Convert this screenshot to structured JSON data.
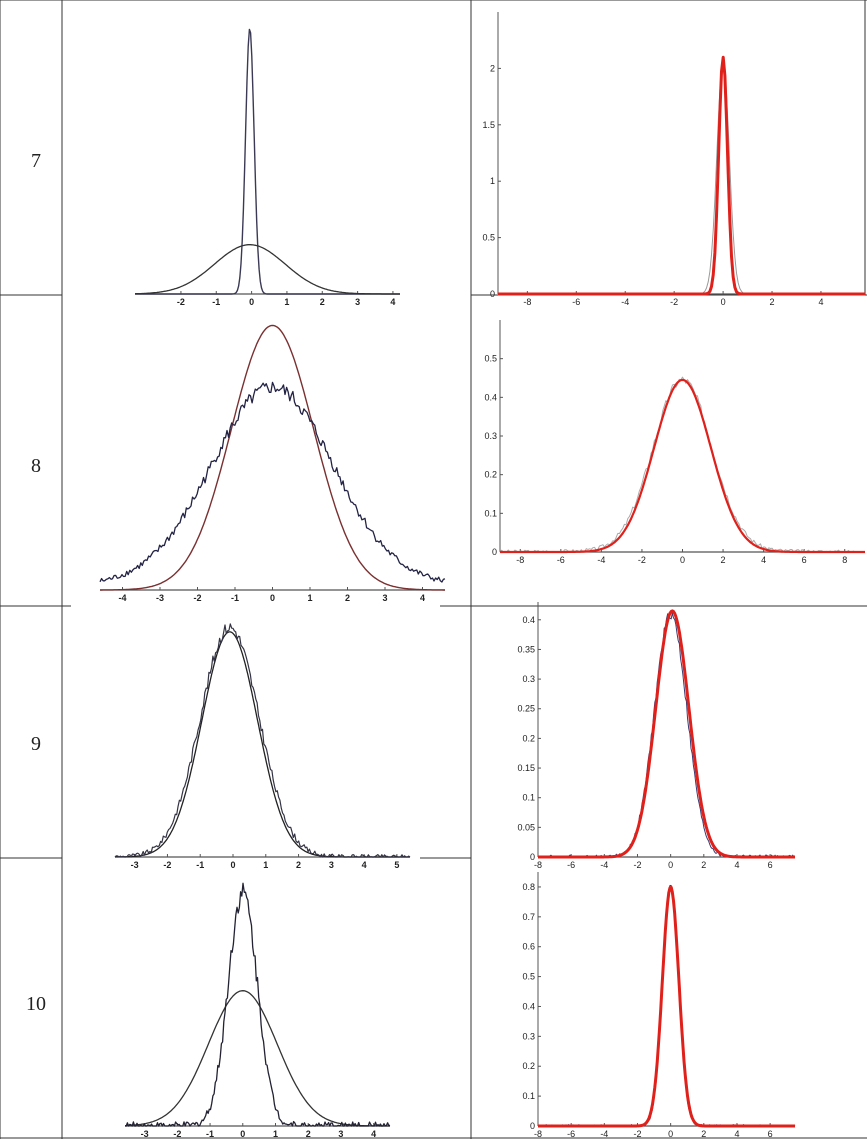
{
  "rows": [
    {
      "label": "7"
    },
    {
      "label": "8"
    },
    {
      "label": "9"
    },
    {
      "label": "10"
    }
  ],
  "chart_data": [
    {
      "type": "line",
      "panel": "row7-left",
      "xlim": [
        -3.3,
        4.2
      ],
      "ylim": [
        0,
        1.0
      ],
      "xticks": [
        "-2",
        "-1",
        "0",
        "1",
        "2",
        "3",
        "4"
      ],
      "xtick_values": [
        -2,
        -1,
        0,
        1,
        2,
        3,
        4
      ],
      "yticks": [],
      "ytick_values": [],
      "series": [
        {
          "kind": "gauss",
          "mu": -0.05,
          "sigma": 0.12,
          "amp": 0.97,
          "color": "#3a3a55",
          "width": 1.4
        },
        {
          "kind": "gauss",
          "mu": -0.05,
          "sigma": 1.0,
          "amp": 0.18,
          "color": "#333333",
          "width": 1.3
        }
      ]
    },
    {
      "type": "line",
      "panel": "row7-right",
      "xlim": [
        -9.2,
        5.8
      ],
      "ylim": [
        0,
        2.5
      ],
      "xticks": [
        "-8",
        "-6",
        "-4",
        "-2",
        "0",
        "2",
        "4"
      ],
      "xtick_values": [
        -8,
        -6,
        -4,
        -2,
        0,
        2,
        4
      ],
      "yticks": [
        "0",
        "0.5",
        "1",
        "1.5",
        "2"
      ],
      "ytick_values": [
        0,
        0.5,
        1,
        1.5,
        2
      ],
      "series": [
        {
          "kind": "gauss",
          "mu": 0.0,
          "sigma": 0.25,
          "amp": 2.08,
          "color": "#999999",
          "width": 1.0
        },
        {
          "kind": "gauss",
          "mu": 0.0,
          "sigma": 0.18,
          "amp": 2.1,
          "color": "#e0201a",
          "width": 3.0
        }
      ]
    },
    {
      "type": "line",
      "panel": "row8-left",
      "xlim": [
        -4.6,
        4.6
      ],
      "ylim": [
        0,
        1.0
      ],
      "xticks": [
        "-4",
        "-3",
        "-2",
        "-1",
        "0",
        "1",
        "2",
        "3",
        "4"
      ],
      "xtick_values": [
        -4,
        -3,
        -2,
        -1,
        0,
        1,
        2,
        3,
        4
      ],
      "yticks": [],
      "ytick_values": [],
      "series": [
        {
          "kind": "gauss",
          "mu": 0.0,
          "sigma": 1.1,
          "amp": 0.98,
          "color": "#7a3030",
          "width": 1.4
        },
        {
          "kind": "noisy",
          "mu": 0.0,
          "sigma": 1.6,
          "amp": 0.7,
          "base": 0.05,
          "noise": 0.025,
          "seed": 8,
          "color": "#222244",
          "width": 1.3
        }
      ]
    },
    {
      "type": "line",
      "panel": "row8-right",
      "xlim": [
        -9,
        9
      ],
      "ylim": [
        0,
        0.6
      ],
      "xticks": [
        "-8",
        "-6",
        "-4",
        "-2",
        "0",
        "2",
        "4",
        "6",
        "8"
      ],
      "xtick_values": [
        -8,
        -6,
        -4,
        -2,
        0,
        2,
        4,
        6,
        8
      ],
      "yticks": [
        "0",
        "0.1",
        "0.2",
        "0.3",
        "0.4",
        "0.5"
      ],
      "ytick_values": [
        0,
        0.1,
        0.2,
        0.3,
        0.4,
        0.5
      ],
      "series": [
        {
          "kind": "noisy",
          "mu": 0.0,
          "sigma": 1.45,
          "amp": 0.44,
          "base": 0.006,
          "noise": 0.012,
          "seed": 3,
          "color": "#aaaaaa",
          "width": 1.0
        },
        {
          "kind": "gauss",
          "mu": 0.0,
          "sigma": 1.4,
          "amp": 0.445,
          "color": "#e0201a",
          "width": 2.2
        }
      ]
    },
    {
      "type": "line",
      "panel": "row9-left",
      "xlim": [
        -3.6,
        5.4
      ],
      "ylim": [
        0,
        1.0
      ],
      "xticks": [
        "-3",
        "-2",
        "-1",
        "0",
        "1",
        "2",
        "3",
        "4",
        "5"
      ],
      "xtick_values": [
        -3,
        -2,
        -1,
        0,
        1,
        2,
        3,
        4,
        5
      ],
      "yticks": [],
      "ytick_values": [],
      "series": [
        {
          "kind": "gauss",
          "mu": -0.1,
          "sigma": 0.85,
          "amp": 0.95,
          "color": "#222222",
          "width": 1.3
        },
        {
          "kind": "noisy",
          "mu": -0.1,
          "sigma": 0.9,
          "amp": 0.97,
          "base": 0.0,
          "noise": 0.025,
          "seed": 9,
          "color": "#333344",
          "width": 1.2
        }
      ]
    },
    {
      "type": "line",
      "panel": "row9-right",
      "xlim": [
        -8,
        7.5
      ],
      "ylim": [
        0,
        0.43
      ],
      "xticks": [
        "-8",
        "-6",
        "-4",
        "-2",
        "0",
        "2",
        "4",
        "6"
      ],
      "xtick_values": [
        -8,
        -6,
        -4,
        -2,
        0,
        2,
        4,
        6
      ],
      "yticks": [
        "0",
        "0.05",
        "0.1",
        "0.15",
        "0.2",
        "0.25",
        "0.3",
        "0.35",
        "0.4"
      ],
      "ytick_values": [
        0,
        0.05,
        0.1,
        0.15,
        0.2,
        0.25,
        0.3,
        0.35,
        0.4
      ],
      "series": [
        {
          "kind": "noisy",
          "mu": 0.0,
          "sigma": 0.98,
          "amp": 0.41,
          "base": 0.0,
          "noise": 0.008,
          "seed": 4,
          "color": "#3a3a70",
          "width": 1.0
        },
        {
          "kind": "gauss",
          "mu": 0.1,
          "sigma": 1.0,
          "amp": 0.415,
          "color": "#e0201a",
          "width": 3.0
        }
      ]
    },
    {
      "type": "line",
      "panel": "row10-left",
      "xlim": [
        -3.6,
        4.5
      ],
      "ylim": [
        0,
        1.0
      ],
      "xticks": [
        "-3",
        "-2",
        "-1",
        "0",
        "1",
        "2",
        "3",
        "4"
      ],
      "xtick_values": [
        -3,
        -2,
        -1,
        0,
        1,
        2,
        3,
        4
      ],
      "yticks": [],
      "ytick_values": [],
      "series": [
        {
          "kind": "gauss",
          "mu": 0.0,
          "sigma": 1.05,
          "amp": 0.55,
          "color": "#333333",
          "width": 1.3
        },
        {
          "kind": "noisy",
          "mu": 0.0,
          "sigma": 0.45,
          "amp": 0.95,
          "base": 0.0,
          "noise": 0.04,
          "seed": 10,
          "color": "#222233",
          "width": 1.3
        }
      ]
    },
    {
      "type": "line",
      "panel": "row10-right",
      "xlim": [
        -8,
        7.5
      ],
      "ylim": [
        0,
        0.85
      ],
      "xticks": [
        "-8",
        "-6",
        "-4",
        "-2",
        "0",
        "2",
        "4",
        "6"
      ],
      "xtick_values": [
        -8,
        -6,
        -4,
        -2,
        0,
        2,
        4,
        6
      ],
      "yticks": [
        "0",
        "0.1",
        "0.2",
        "0.3",
        "0.4",
        "0.5",
        "0.6",
        "0.7",
        "0.8"
      ],
      "ytick_values": [
        0,
        0.1,
        0.2,
        0.3,
        0.4,
        0.5,
        0.6,
        0.7,
        0.8
      ],
      "series": [
        {
          "kind": "noisy",
          "mu": 0.0,
          "sigma": 0.48,
          "amp": 0.81,
          "base": 0.0,
          "noise": 0.012,
          "seed": 5,
          "color": "#3a3a70",
          "width": 1.0
        },
        {
          "kind": "gauss",
          "mu": 0.0,
          "sigma": 0.5,
          "amp": 0.8,
          "color": "#e0201a",
          "width": 3.0
        }
      ]
    }
  ]
}
